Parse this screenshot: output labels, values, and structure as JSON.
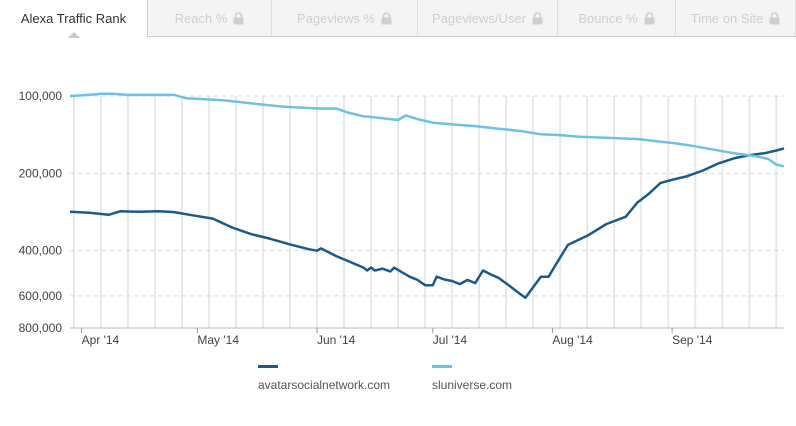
{
  "tabs": [
    {
      "label": "Alexa Traffic Rank",
      "active": true,
      "locked": false
    },
    {
      "label": "Reach %",
      "active": false,
      "locked": true
    },
    {
      "label": "Pageviews %",
      "active": false,
      "locked": true
    },
    {
      "label": "Pageviews/User",
      "active": false,
      "locked": true
    },
    {
      "label": "Bounce %",
      "active": false,
      "locked": true
    },
    {
      "label": "Time on Site",
      "active": false,
      "locked": true
    }
  ],
  "colors": {
    "series_dark": "#1c5a8c",
    "series_light": "#6ec1e4",
    "grid": "#dddddd",
    "band": "#e8e8e8",
    "axis_text": "#444444"
  },
  "chart_data": {
    "type": "line",
    "title": "",
    "xlabel": "",
    "ylabel": "",
    "y_scale": "log-reversed",
    "ylim": [
      100000,
      800000
    ],
    "y_ticks": [
      {
        "value": 100000,
        "label": "100,000"
      },
      {
        "value": 200000,
        "label": "200,000"
      },
      {
        "value": 400000,
        "label": "400,000"
      },
      {
        "value": 600000,
        "label": "600,000"
      },
      {
        "value": 800000,
        "label": "800,000"
      }
    ],
    "x_ticks": [
      {
        "date": "2014-04-01",
        "label": "Apr '14"
      },
      {
        "date": "2014-05-01",
        "label": "May '14"
      },
      {
        "date": "2014-06-01",
        "label": "Jun '14"
      },
      {
        "date": "2014-07-01",
        "label": "Jul '14"
      },
      {
        "date": "2014-08-01",
        "label": "Aug '14"
      },
      {
        "date": "2014-09-01",
        "label": "Sep '14"
      }
    ],
    "x_range": [
      "2014-03-29",
      "2014-09-30"
    ],
    "grid": true,
    "legend_position": "bottom",
    "series": [
      {
        "name": "avatarsocialnetwork.com",
        "color": "#1c5a8c",
        "points": [
          [
            "2014-03-29",
            282000
          ],
          [
            "2014-04-03",
            285000
          ],
          [
            "2014-04-08",
            290000
          ],
          [
            "2014-04-11",
            281000
          ],
          [
            "2014-04-16",
            282000
          ],
          [
            "2014-04-21",
            281000
          ],
          [
            "2014-04-25",
            283000
          ],
          [
            "2014-04-29",
            290000
          ],
          [
            "2014-05-05",
            300000
          ],
          [
            "2014-05-10",
            325000
          ],
          [
            "2014-05-15",
            345000
          ],
          [
            "2014-05-20",
            360000
          ],
          [
            "2014-05-25",
            378000
          ],
          [
            "2014-05-30",
            395000
          ],
          [
            "2014-06-01",
            400000
          ],
          [
            "2014-06-02",
            392000
          ],
          [
            "2014-06-06",
            420000
          ],
          [
            "2014-06-10",
            445000
          ],
          [
            "2014-06-13",
            465000
          ],
          [
            "2014-06-14",
            478000
          ],
          [
            "2014-06-15",
            465000
          ],
          [
            "2014-06-16",
            478000
          ],
          [
            "2014-06-18",
            470000
          ],
          [
            "2014-06-20",
            482000
          ],
          [
            "2014-06-21",
            466000
          ],
          [
            "2014-06-23",
            485000
          ],
          [
            "2014-06-25",
            505000
          ],
          [
            "2014-06-27",
            520000
          ],
          [
            "2014-06-29",
            545000
          ],
          [
            "2014-07-01",
            545000
          ],
          [
            "2014-07-02",
            505000
          ],
          [
            "2014-07-04",
            518000
          ],
          [
            "2014-07-06",
            525000
          ],
          [
            "2014-07-08",
            540000
          ],
          [
            "2014-07-10",
            520000
          ],
          [
            "2014-07-12",
            535000
          ],
          [
            "2014-07-14",
            478000
          ],
          [
            "2014-07-16",
            495000
          ],
          [
            "2014-07-18",
            510000
          ],
          [
            "2014-07-21",
            550000
          ],
          [
            "2014-07-23",
            580000
          ],
          [
            "2014-07-25",
            610000
          ],
          [
            "2014-07-27",
            555000
          ],
          [
            "2014-07-29",
            505000
          ],
          [
            "2014-07-31",
            505000
          ],
          [
            "2014-08-02",
            450000
          ],
          [
            "2014-08-05",
            380000
          ],
          [
            "2014-08-10",
            350000
          ],
          [
            "2014-08-15",
            315000
          ],
          [
            "2014-08-20",
            295000
          ],
          [
            "2014-08-23",
            260000
          ],
          [
            "2014-08-26",
            240000
          ],
          [
            "2014-08-29",
            218000
          ],
          [
            "2014-09-01",
            212000
          ],
          [
            "2014-09-05",
            205000
          ],
          [
            "2014-09-09",
            195000
          ],
          [
            "2014-09-13",
            183000
          ],
          [
            "2014-09-17",
            175000
          ],
          [
            "2014-09-21",
            170000
          ],
          [
            "2014-09-25",
            167000
          ],
          [
            "2014-09-28",
            163000
          ],
          [
            "2014-09-30",
            160000
          ]
        ]
      },
      {
        "name": "sluniverse.com",
        "color": "#6ec1e4",
        "points": [
          [
            "2014-03-29",
            100000
          ],
          [
            "2014-04-03",
            99000
          ],
          [
            "2014-04-06",
            98000
          ],
          [
            "2014-04-09",
            98000
          ],
          [
            "2014-04-13",
            99000
          ],
          [
            "2014-04-17",
            99000
          ],
          [
            "2014-04-22",
            99000
          ],
          [
            "2014-04-25",
            99000
          ],
          [
            "2014-04-28",
            102000
          ],
          [
            "2014-05-03",
            103000
          ],
          [
            "2014-05-08",
            104000
          ],
          [
            "2014-05-13",
            106000
          ],
          [
            "2014-05-18",
            108000
          ],
          [
            "2014-05-23",
            110000
          ],
          [
            "2014-05-28",
            111000
          ],
          [
            "2014-06-02",
            112000
          ],
          [
            "2014-06-06",
            112000
          ],
          [
            "2014-06-09",
            116000
          ],
          [
            "2014-06-13",
            120000
          ],
          [
            "2014-06-18",
            122000
          ],
          [
            "2014-06-22",
            124000
          ],
          [
            "2014-06-24",
            119000
          ],
          [
            "2014-06-27",
            123000
          ],
          [
            "2014-07-01",
            127000
          ],
          [
            "2014-07-06",
            129000
          ],
          [
            "2014-07-12",
            131000
          ],
          [
            "2014-07-18",
            134000
          ],
          [
            "2014-07-24",
            137000
          ],
          [
            "2014-07-29",
            141000
          ],
          [
            "2014-08-03",
            142000
          ],
          [
            "2014-08-08",
            144000
          ],
          [
            "2014-08-13",
            145000
          ],
          [
            "2014-08-18",
            146000
          ],
          [
            "2014-08-23",
            147000
          ],
          [
            "2014-08-28",
            150000
          ],
          [
            "2014-09-02",
            153000
          ],
          [
            "2014-09-07",
            157000
          ],
          [
            "2014-09-12",
            162000
          ],
          [
            "2014-09-17",
            167000
          ],
          [
            "2014-09-21",
            170000
          ],
          [
            "2014-09-24",
            173000
          ],
          [
            "2014-09-26",
            176000
          ],
          [
            "2014-09-28",
            185000
          ],
          [
            "2014-09-30",
            188000
          ]
        ]
      }
    ]
  }
}
